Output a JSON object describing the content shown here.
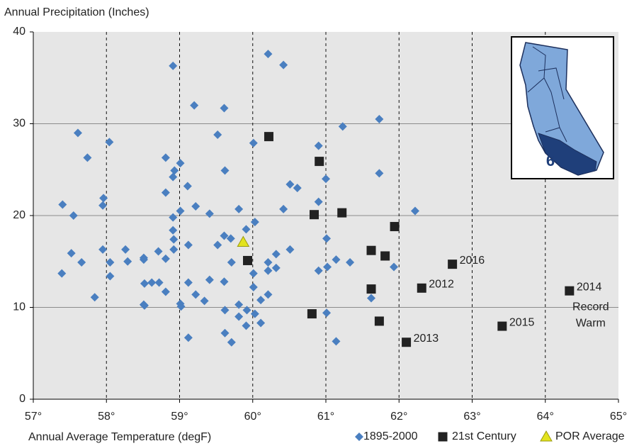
{
  "chart_data": {
    "type": "scatter",
    "y_label": "Annual Precipitation (Inches)",
    "x_label": "Annual Average Temperature (degF)",
    "xlim": [
      57,
      65
    ],
    "xticks": [
      {
        "value": 57,
        "label": "57°"
      },
      {
        "value": 58,
        "label": "58°"
      },
      {
        "value": 59,
        "label": "59°"
      },
      {
        "value": 60,
        "label": "60°"
      },
      {
        "value": 61,
        "label": "61°"
      },
      {
        "value": 62,
        "label": "62°"
      },
      {
        "value": 63,
        "label": "63°"
      },
      {
        "value": 64,
        "label": "64°"
      },
      {
        "value": 65,
        "label": "65°"
      }
    ],
    "ylim": [
      0,
      40
    ],
    "yticks": [
      0,
      10,
      20,
      30,
      40
    ],
    "grid": true,
    "inset_label": "6",
    "record_note": [
      "Record",
      "Warm"
    ],
    "series": [
      {
        "name": "1895-2000",
        "color": "#4a7fc0",
        "marker": "diamond",
        "x": [
          57.4,
          57.39,
          57.61,
          57.55,
          57.52,
          57.66,
          57.74,
          57.84,
          57.95,
          57.96,
          57.95,
          58.05,
          58.05,
          58.04,
          58.26,
          58.29,
          58.51,
          58.51,
          58.52,
          58.51,
          58.52,
          58.62,
          58.71,
          58.72,
          58.81,
          58.81,
          58.81,
          58.81,
          58.91,
          58.93,
          58.91,
          58.91,
          58.91,
          58.92,
          58.92,
          59.01,
          59.01,
          59.02,
          59.01,
          59.11,
          59.12,
          59.12,
          59.12,
          59.2,
          59.22,
          59.22,
          59.34,
          59.41,
          59.41,
          59.52,
          59.52,
          59.61,
          59.62,
          59.61,
          59.61,
          59.62,
          59.62,
          59.7,
          59.71,
          59.71,
          59.81,
          59.81,
          59.81,
          59.91,
          59.92,
          59.91,
          60.01,
          60.03,
          60.01,
          60.01,
          60.03,
          60.11,
          60.11,
          60.21,
          60.21,
          60.21,
          60.21,
          60.32,
          60.32,
          60.42,
          60.42,
          60.51,
          60.51,
          60.61,
          60.9,
          60.9,
          60.9,
          61.0,
          61.01,
          61.02,
          61.01,
          61.14,
          61.14,
          61.23,
          61.33,
          61.62,
          61.73,
          61.73,
          61.93,
          62.22
        ],
        "values": [
          21.2,
          13.7,
          29.0,
          20.0,
          15.9,
          14.9,
          26.3,
          11.1,
          21.1,
          21.9,
          16.3,
          14.9,
          13.4,
          28.0,
          16.3,
          15.0,
          15.4,
          15.2,
          12.6,
          10.3,
          10.2,
          12.7,
          16.1,
          12.7,
          26.3,
          22.5,
          15.3,
          11.7,
          36.3,
          24.9,
          24.2,
          19.8,
          18.4,
          17.4,
          16.3,
          25.7,
          10.4,
          10.1,
          20.5,
          23.2,
          16.8,
          12.7,
          6.7,
          32.0,
          21.0,
          11.4,
          10.7,
          20.2,
          13.0,
          28.8,
          16.8,
          31.7,
          24.9,
          17.8,
          12.8,
          9.7,
          7.2,
          17.5,
          14.9,
          6.2,
          20.7,
          10.3,
          9.0,
          18.5,
          9.7,
          8.0,
          27.9,
          19.3,
          13.7,
          12.2,
          9.3,
          8.3,
          10.8,
          37.6,
          14.9,
          14.0,
          11.4,
          15.8,
          14.3,
          36.4,
          20.7,
          23.4,
          16.3,
          23.0,
          27.6,
          21.5,
          14.0,
          24.0,
          17.5,
          14.4,
          9.4,
          15.2,
          6.3,
          29.7,
          14.9,
          11.0,
          30.5,
          24.6,
          14.4,
          20.5
        ]
      },
      {
        "name": "21st Century",
        "color": "#222222",
        "marker": "square",
        "x": [
          60.22,
          60.91,
          60.84,
          61.22,
          59.93,
          61.94,
          61.62,
          61.81,
          61.62,
          60.81,
          61.73,
          62.1,
          62.31,
          62.73,
          63.41,
          64.33
        ],
        "values": [
          28.6,
          25.9,
          20.1,
          20.3,
          15.1,
          18.8,
          16.2,
          15.6,
          12.0,
          9.3,
          8.5,
          6.2,
          12.1,
          14.7,
          7.95,
          11.8
        ],
        "labels": [
          null,
          null,
          null,
          null,
          null,
          null,
          null,
          null,
          null,
          null,
          null,
          "2013",
          "2012",
          "2016",
          "2015",
          "2014"
        ]
      },
      {
        "name": "POR Average",
        "color": "#e3e31e",
        "marker": "triangle",
        "x": [
          59.87
        ],
        "values": [
          17.1
        ]
      }
    ]
  }
}
